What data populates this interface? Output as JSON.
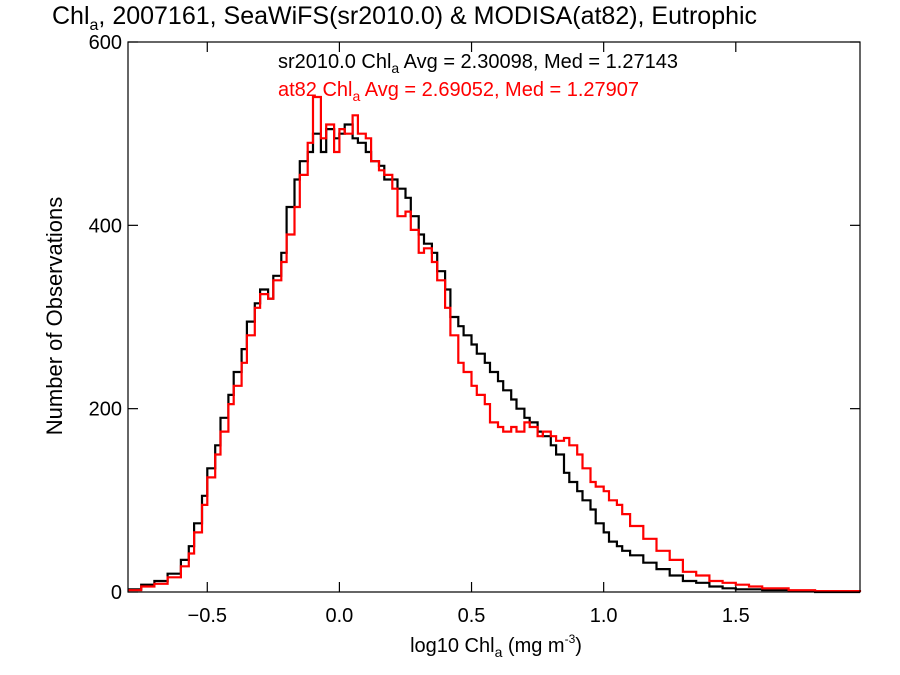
{
  "chart_data": {
    "type": "line",
    "title_parts": {
      "prefix": "Chl",
      "prefix_sub": "a",
      "rest": ", 2007161, SeaWiFS(sr2010.0) & MODISA(at82), Eutrophic"
    },
    "xlabel_parts": {
      "main": "log10 Chl",
      "sub": "a",
      "units": " (mg m",
      "units_sup": "-3",
      "close": ")"
    },
    "ylabel": "Number of Observations",
    "xlim": [
      -0.8,
      1.97
    ],
    "ylim": [
      0,
      600
    ],
    "x_ticks": [
      {
        "value": -0.5,
        "label": "−0.5"
      },
      {
        "value": 0.0,
        "label": "0.0"
      },
      {
        "value": 0.5,
        "label": "0.5"
      },
      {
        "value": 1.0,
        "label": "1.0"
      },
      {
        "value": 1.5,
        "label": "1.5"
      }
    ],
    "y_ticks": [
      {
        "value": 0,
        "label": "0"
      },
      {
        "value": 200,
        "label": "200"
      },
      {
        "value": 400,
        "label": "400"
      },
      {
        "value": 600,
        "label": "600"
      }
    ],
    "grid": false,
    "legend": [
      {
        "prefix": "sr2010.0 Chl",
        "sub": "a",
        "rest": " Avg = 2.30098, Med = 1.27143",
        "color": "#000000"
      },
      {
        "prefix": "at82 Chl",
        "sub": "a",
        "rest": " Avg = 2.69052, Med = 1.27907",
        "color": "#ff0000"
      }
    ],
    "series": [
      {
        "color": "#000000",
        "points": [
          [
            -0.8,
            3
          ],
          [
            -0.75,
            8
          ],
          [
            -0.7,
            12
          ],
          [
            -0.65,
            20
          ],
          [
            -0.6,
            35
          ],
          [
            -0.57,
            50
          ],
          [
            -0.55,
            75
          ],
          [
            -0.52,
            105
          ],
          [
            -0.5,
            135
          ],
          [
            -0.47,
            160
          ],
          [
            -0.45,
            190
          ],
          [
            -0.42,
            215
          ],
          [
            -0.4,
            240
          ],
          [
            -0.37,
            265
          ],
          [
            -0.35,
            295
          ],
          [
            -0.32,
            315
          ],
          [
            -0.3,
            330
          ],
          [
            -0.27,
            320
          ],
          [
            -0.25,
            345
          ],
          [
            -0.22,
            370
          ],
          [
            -0.2,
            420
          ],
          [
            -0.17,
            450
          ],
          [
            -0.15,
            470
          ],
          [
            -0.12,
            480
          ],
          [
            -0.1,
            500
          ],
          [
            -0.07,
            480
          ],
          [
            -0.05,
            505
          ],
          [
            -0.02,
            495
          ],
          [
            0.0,
            500
          ],
          [
            0.02,
            510
          ],
          [
            0.05,
            495
          ],
          [
            0.07,
            490
          ],
          [
            0.1,
            480
          ],
          [
            0.12,
            470
          ],
          [
            0.15,
            465
          ],
          [
            0.17,
            450
          ],
          [
            0.2,
            450
          ],
          [
            0.22,
            440
          ],
          [
            0.25,
            430
          ],
          [
            0.27,
            410
          ],
          [
            0.3,
            390
          ],
          [
            0.32,
            380
          ],
          [
            0.35,
            370
          ],
          [
            0.37,
            350
          ],
          [
            0.4,
            330
          ],
          [
            0.42,
            300
          ],
          [
            0.45,
            290
          ],
          [
            0.47,
            280
          ],
          [
            0.5,
            270
          ],
          [
            0.52,
            260
          ],
          [
            0.55,
            250
          ],
          [
            0.57,
            240
          ],
          [
            0.6,
            230
          ],
          [
            0.62,
            220
          ],
          [
            0.65,
            210
          ],
          [
            0.67,
            200
          ],
          [
            0.7,
            190
          ],
          [
            0.72,
            185
          ],
          [
            0.75,
            175
          ],
          [
            0.77,
            170
          ],
          [
            0.8,
            160
          ],
          [
            0.82,
            150
          ],
          [
            0.85,
            130
          ],
          [
            0.87,
            120
          ],
          [
            0.9,
            110
          ],
          [
            0.92,
            100
          ],
          [
            0.95,
            90
          ],
          [
            0.97,
            75
          ],
          [
            1.0,
            65
          ],
          [
            1.02,
            55
          ],
          [
            1.05,
            50
          ],
          [
            1.07,
            45
          ],
          [
            1.1,
            40
          ],
          [
            1.15,
            32
          ],
          [
            1.2,
            25
          ],
          [
            1.25,
            18
          ],
          [
            1.3,
            12
          ],
          [
            1.35,
            10
          ],
          [
            1.4,
            6
          ],
          [
            1.45,
            4
          ],
          [
            1.5,
            3
          ],
          [
            1.6,
            2
          ],
          [
            1.7,
            1
          ],
          [
            1.8,
            0
          ],
          [
            1.97,
            0
          ]
        ]
      },
      {
        "color": "#ff0000",
        "points": [
          [
            -0.8,
            2
          ],
          [
            -0.75,
            6
          ],
          [
            -0.7,
            9
          ],
          [
            -0.65,
            16
          ],
          [
            -0.6,
            28
          ],
          [
            -0.57,
            42
          ],
          [
            -0.55,
            65
          ],
          [
            -0.52,
            95
          ],
          [
            -0.5,
            125
          ],
          [
            -0.47,
            150
          ],
          [
            -0.45,
            175
          ],
          [
            -0.42,
            205
          ],
          [
            -0.4,
            225
          ],
          [
            -0.37,
            250
          ],
          [
            -0.35,
            280
          ],
          [
            -0.32,
            310
          ],
          [
            -0.3,
            325
          ],
          [
            -0.27,
            320
          ],
          [
            -0.25,
            340
          ],
          [
            -0.22,
            360
          ],
          [
            -0.2,
            390
          ],
          [
            -0.17,
            420
          ],
          [
            -0.15,
            455
          ],
          [
            -0.12,
            490
          ],
          [
            -0.1,
            540
          ],
          [
            -0.07,
            495
          ],
          [
            -0.05,
            510
          ],
          [
            -0.02,
            480
          ],
          [
            0.0,
            505
          ],
          [
            0.02,
            500
          ],
          [
            0.05,
            520
          ],
          [
            0.07,
            500
          ],
          [
            0.1,
            495
          ],
          [
            0.12,
            470
          ],
          [
            0.15,
            460
          ],
          [
            0.17,
            455
          ],
          [
            0.2,
            440
          ],
          [
            0.22,
            410
          ],
          [
            0.25,
            415
          ],
          [
            0.27,
            395
          ],
          [
            0.3,
            370
          ],
          [
            0.32,
            375
          ],
          [
            0.35,
            360
          ],
          [
            0.37,
            340
          ],
          [
            0.4,
            310
          ],
          [
            0.42,
            280
          ],
          [
            0.45,
            250
          ],
          [
            0.47,
            240
          ],
          [
            0.5,
            225
          ],
          [
            0.52,
            215
          ],
          [
            0.55,
            205
          ],
          [
            0.57,
            185
          ],
          [
            0.6,
            180
          ],
          [
            0.62,
            175
          ],
          [
            0.65,
            180
          ],
          [
            0.67,
            175
          ],
          [
            0.7,
            185
          ],
          [
            0.72,
            180
          ],
          [
            0.75,
            170
          ],
          [
            0.77,
            175
          ],
          [
            0.8,
            170
          ],
          [
            0.82,
            165
          ],
          [
            0.85,
            168
          ],
          [
            0.87,
            160
          ],
          [
            0.9,
            150
          ],
          [
            0.92,
            135
          ],
          [
            0.95,
            120
          ],
          [
            0.97,
            115
          ],
          [
            1.0,
            110
          ],
          [
            1.02,
            100
          ],
          [
            1.05,
            95
          ],
          [
            1.07,
            85
          ],
          [
            1.1,
            72
          ],
          [
            1.15,
            58
          ],
          [
            1.2,
            45
          ],
          [
            1.25,
            35
          ],
          [
            1.3,
            22
          ],
          [
            1.35,
            18
          ],
          [
            1.4,
            12
          ],
          [
            1.45,
            10
          ],
          [
            1.5,
            8
          ],
          [
            1.55,
            6
          ],
          [
            1.6,
            4
          ],
          [
            1.7,
            2
          ],
          [
            1.8,
            1
          ],
          [
            1.97,
            0
          ]
        ]
      }
    ]
  }
}
